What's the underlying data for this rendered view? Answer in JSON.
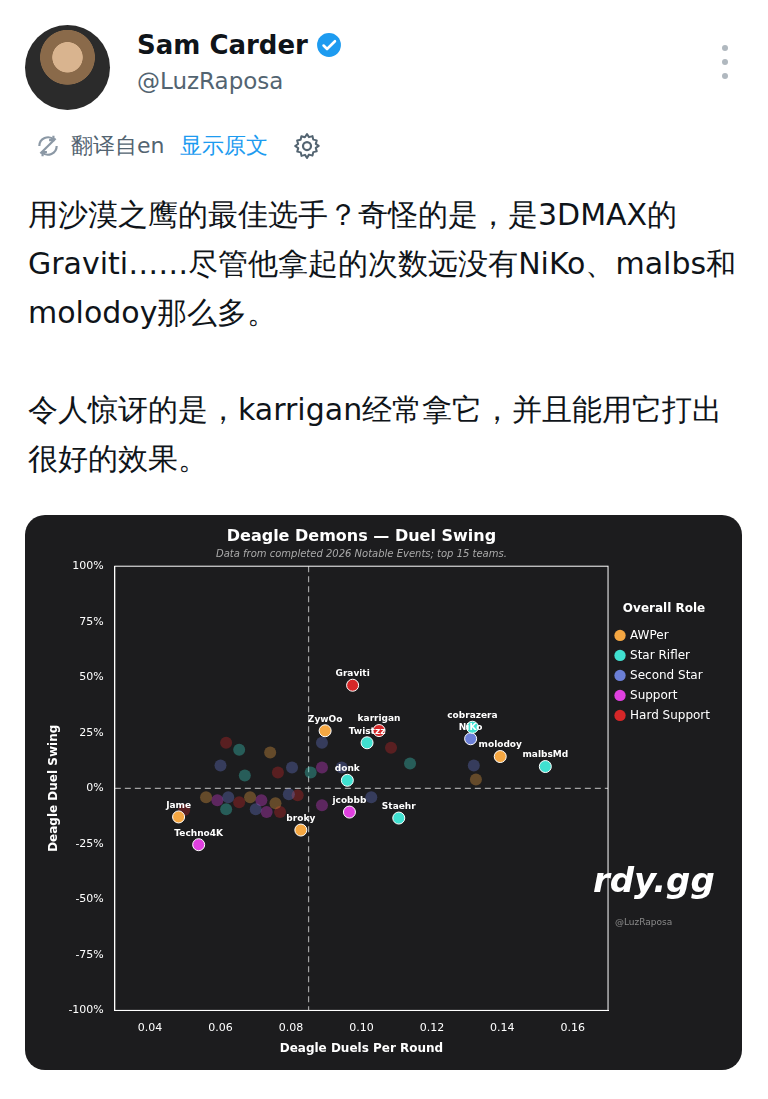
{
  "header": {
    "name": "Sam Carder",
    "handle": "@LuzRaposa",
    "translated_from": "翻译自en",
    "show_original": "显示原文"
  },
  "tweet": {
    "paragraphs": [
      "用沙漠之鹰的最佳选手？奇怪的是，是3DMAX的Graviti……尽管他拿起的次数远没有NiKo、malbs和molodoy那么多。",
      "令人惊讶的是，karrigan经常拿它，并且能用它打出很好的效果。"
    ]
  },
  "chart_data": {
    "type": "scatter",
    "title": "Deagle Demons — Duel Swing",
    "subtitle": "Data from completed 2026 Notable Events; top 15 teams.",
    "x_label": "Deagle Duels Per Round",
    "y_label": "Deagle Duel Swing",
    "xlim": [
      0.03,
      0.17
    ],
    "xticks": [
      0.04,
      0.06,
      0.08,
      {
        "value": 0.1,
        "label": "0.10"
      },
      0.12,
      0.14,
      0.16
    ],
    "ylim": [
      -100,
      100
    ],
    "yticks": [
      {
        "value": -100,
        "label": "-100%"
      },
      {
        "value": -75,
        "label": "-75%"
      },
      {
        "value": -50,
        "label": "-50%"
      },
      {
        "value": -25,
        "label": "-25%"
      },
      {
        "value": 0,
        "label": "0%"
      },
      {
        "value": 25,
        "label": "25%"
      },
      {
        "value": 50,
        "label": "50%"
      },
      {
        "value": 75,
        "label": "75%"
      },
      {
        "value": 100,
        "label": "100%"
      }
    ],
    "grid": false,
    "legend": "right",
    "legend_title": "Overall Role",
    "reference_lines": {
      "x": 0.085,
      "y": 0
    },
    "watermark": {
      "brand": "rdy.gg",
      "handle": "@LuzRaposa"
    },
    "series": [
      {
        "name": "AWPer",
        "color": "#f5a742",
        "x": [
          0.0897,
          0.1394,
          0.0828,
          0.0481,
          0.0741,
          0.0559,
          0.0684,
          0.0756,
          0.1325
        ],
        "y": [
          25.9,
          14.3,
          -18.8,
          -12.9,
          16.1,
          -4.0,
          -4.0,
          -6.7,
          4.0
        ],
        "labels": [
          "ZywOo",
          "molodoy",
          "broky",
          "Jame",
          null,
          null,
          null,
          null,
          null
        ]
      },
      {
        "name": "Star Rifler",
        "color": "#40e0d0",
        "x": [
          0.1016,
          0.1315,
          0.1522,
          0.096,
          0.1106,
          0.0653,
          0.1138,
          0.0669,
          0.0856,
          0.0616
        ],
        "y": [
          20.5,
          27.5,
          9.8,
          3.6,
          -13.4,
          17.4,
          11.2,
          5.8,
          7.1,
          -9.4
        ],
        "labels": [
          "Twistzz",
          "cobrazera",
          "malbsMd",
          "donk",
          "Staehr",
          null,
          null,
          null,
          null,
          null
        ]
      },
      {
        "name": "Second Star",
        "color": "#6b7fd7",
        "x": [
          0.131,
          0.0888,
          0.06,
          0.0803,
          0.0944,
          0.0622,
          0.0794,
          0.07,
          0.1028,
          0.1319
        ],
        "y": [
          22.3,
          20.5,
          10.3,
          9.4,
          9.4,
          -4.0,
          -2.7,
          -9.4,
          -4.0,
          10.3
        ],
        "labels": [
          "NiKo",
          null,
          null,
          null,
          null,
          null,
          null,
          null,
          null,
          null
        ]
      },
      {
        "name": "Support",
        "color": "#e040e0",
        "x": [
          0.0966,
          0.0538,
          0.0888,
          0.0591,
          0.0716,
          0.0731,
          0.0888
        ],
        "y": [
          -10.7,
          -25.4,
          9.4,
          -5.4,
          -5.4,
          -10.7,
          -7.6
        ],
        "labels": [
          "jcobbb",
          "Techno4K",
          null,
          null,
          null,
          null,
          null
        ]
      },
      {
        "name": "Hard Support",
        "color": "#d62728",
        "x": [
          0.0975,
          0.105,
          0.0616,
          0.1084,
          0.0763,
          0.0819,
          0.0653,
          0.0769,
          0.0497
        ],
        "y": [
          46.4,
          26.0,
          20.5,
          18.3,
          7.1,
          -3.1,
          -6.3,
          -10.7,
          -9.8
        ],
        "labels": [
          "Graviti",
          "karrigan",
          null,
          null,
          null,
          null,
          null,
          null,
          null
        ]
      }
    ]
  }
}
